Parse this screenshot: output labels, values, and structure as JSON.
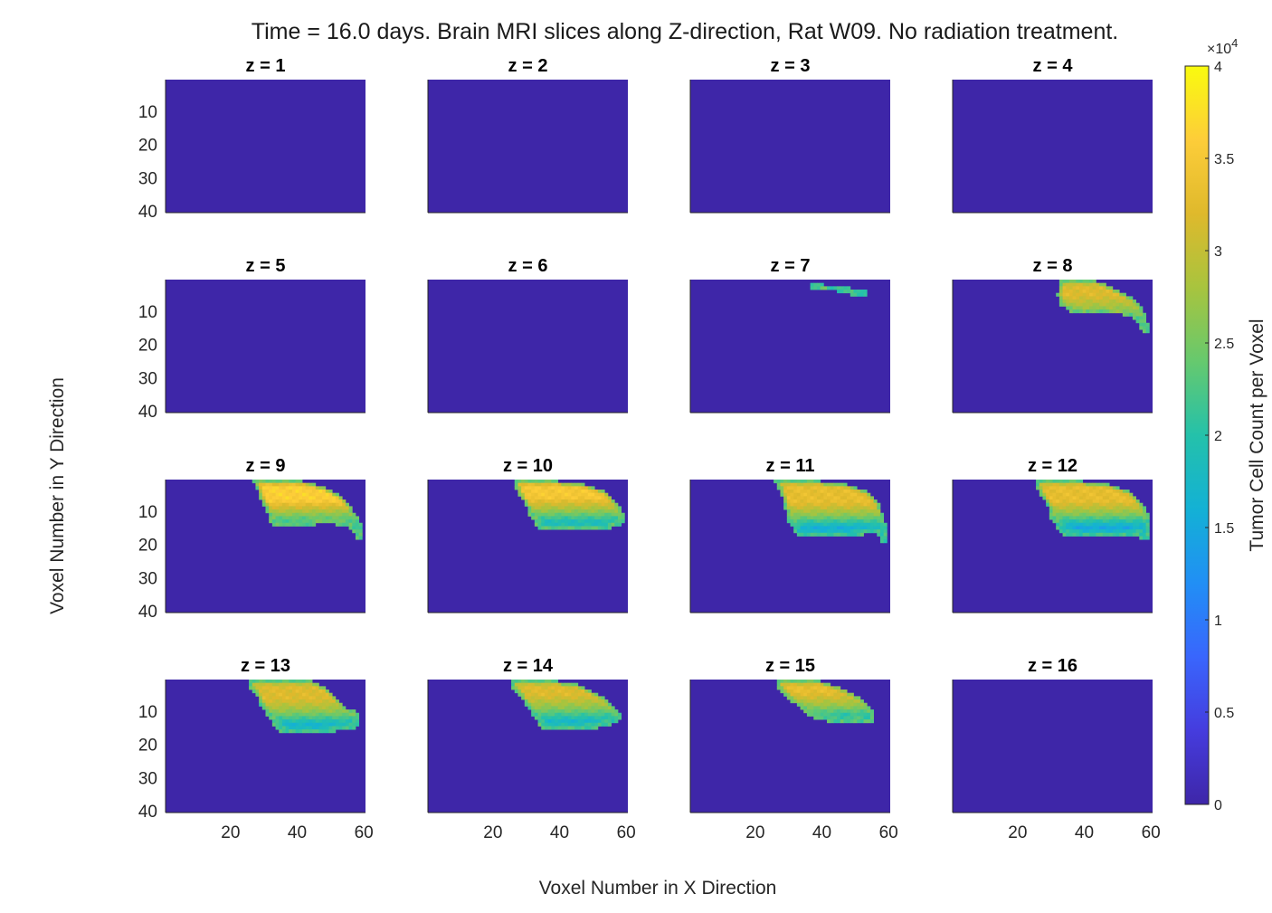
{
  "figure": {
    "title": "Time = 16.0 days. Brain MRI slices along Z-direction, Rat W09. No radiation treatment.",
    "xlabel": "Voxel Number in X Direction",
    "ylabel": "Voxel Number in Y Direction"
  },
  "colors": {
    "background_voxel": "#3e26a8",
    "axis": "#262626",
    "colormap": "parula"
  },
  "colorbar": {
    "label": "Tumor Cell Count per Voxel",
    "exponent_base": "×10",
    "exponent_power": "4",
    "ticks": [
      "0",
      "0.5",
      "1",
      "1.5",
      "2",
      "2.5",
      "3",
      "3.5",
      "4"
    ],
    "range": [
      0,
      40000
    ]
  },
  "chart_data": {
    "type": "heatmap",
    "grid": {
      "nx": 60,
      "ny": 40
    },
    "xlim": [
      1,
      60
    ],
    "ylim": [
      1,
      40
    ],
    "y_direction": "reversed",
    "xticks": [
      "20",
      "40",
      "60"
    ],
    "yticks": [
      "10",
      "20",
      "30",
      "40"
    ],
    "value_range": [
      0,
      40000
    ],
    "panels": [
      {
        "title": "z = 1",
        "tumor": null
      },
      {
        "title": "z = 2",
        "tumor": null
      },
      {
        "title": "z = 3",
        "tumor": null
      },
      {
        "title": "z = 4",
        "tumor": null
      },
      {
        "title": "z = 5",
        "tumor": null
      },
      {
        "title": "z = 6",
        "tumor": null
      },
      {
        "title": "z = 7",
        "tumor": {
          "outline": [
            [
              37,
              2
            ],
            [
              41,
              2
            ],
            [
              49,
              3
            ],
            [
              54,
              4
            ],
            [
              53,
              6
            ],
            [
              45,
              4
            ],
            [
              40,
              4
            ],
            [
              37,
              3
            ]
          ],
          "base": 24000,
          "peak": 28000,
          "core": 20000
        }
      },
      {
        "title": "z = 8",
        "tumor": {
          "outline": [
            [
              33,
              1
            ],
            [
              44,
              1
            ],
            [
              49,
              3
            ],
            [
              53,
              5
            ],
            [
              56,
              7
            ],
            [
              58,
              10
            ],
            [
              59,
              13
            ],
            [
              60,
              16
            ],
            [
              59,
              17
            ],
            [
              57,
              15
            ],
            [
              55,
              12
            ],
            [
              52,
              11
            ],
            [
              48,
              11
            ],
            [
              44,
              10
            ],
            [
              40,
              11
            ],
            [
              36,
              10
            ],
            [
              33,
              8
            ],
            [
              32,
              5
            ]
          ],
          "base": 27000,
          "peak": 32000,
          "core": 20000
        }
      },
      {
        "title": "z = 9",
        "tumor": {
          "outline": [
            [
              27,
              1
            ],
            [
              42,
              1
            ],
            [
              49,
              3
            ],
            [
              54,
              6
            ],
            [
              57,
              10
            ],
            [
              59,
              13
            ],
            [
              60,
              16
            ],
            [
              60,
              19
            ],
            [
              58,
              18
            ],
            [
              56,
              15
            ],
            [
              52,
              14
            ],
            [
              46,
              14
            ],
            [
              40,
              15
            ],
            [
              33,
              15
            ],
            [
              32,
              13
            ],
            [
              31,
              10
            ],
            [
              29,
              6
            ],
            [
              28,
              3
            ]
          ],
          "base": 27000,
          "peak": 36000,
          "core": 17000
        }
      },
      {
        "title": "z = 10",
        "tumor": {
          "outline": [
            [
              27,
              1
            ],
            [
              40,
              1
            ],
            [
              48,
              2
            ],
            [
              54,
              4
            ],
            [
              57,
              7
            ],
            [
              59,
              10
            ],
            [
              60,
              12
            ],
            [
              59,
              14
            ],
            [
              56,
              15
            ],
            [
              54,
              16
            ],
            [
              50,
              16
            ],
            [
              44,
              16
            ],
            [
              38,
              16
            ],
            [
              34,
              16
            ],
            [
              33,
              14
            ],
            [
              31,
              11
            ],
            [
              30,
              8
            ],
            [
              28,
              5
            ],
            [
              27,
              3
            ]
          ],
          "base": 27000,
          "peak": 35000,
          "core": 17000
        }
      },
      {
        "title": "z = 11",
        "tumor": {
          "outline": [
            [
              26,
              1
            ],
            [
              40,
              1
            ],
            [
              48,
              2
            ],
            [
              54,
              4
            ],
            [
              57,
              7
            ],
            [
              58,
              10
            ],
            [
              59,
              13
            ],
            [
              60,
              16
            ],
            [
              60,
              20
            ],
            [
              58,
              19
            ],
            [
              57,
              17
            ],
            [
              53,
              17
            ],
            [
              47,
              18
            ],
            [
              40,
              18
            ],
            [
              33,
              18
            ],
            [
              32,
              16
            ],
            [
              30,
              13
            ],
            [
              29,
              9
            ],
            [
              28,
              5
            ],
            [
              27,
              3
            ]
          ],
          "base": 26000,
          "peak": 33000,
          "core": 15000
        }
      },
      {
        "title": "z = 12",
        "tumor": {
          "outline": [
            [
              26,
              1
            ],
            [
              40,
              1
            ],
            [
              48,
              2
            ],
            [
              54,
              4
            ],
            [
              57,
              7
            ],
            [
              59,
              10
            ],
            [
              60,
              14
            ],
            [
              60,
              18
            ],
            [
              58,
              19
            ],
            [
              56,
              17
            ],
            [
              52,
              18
            ],
            [
              46,
              18
            ],
            [
              40,
              18
            ],
            [
              34,
              17
            ],
            [
              32,
              15
            ],
            [
              30,
              12
            ],
            [
              29,
              8
            ],
            [
              27,
              5
            ],
            [
              26,
              3
            ]
          ],
          "base": 26000,
          "peak": 33000,
          "core": 15000
        }
      },
      {
        "title": "z = 13",
        "tumor": {
          "outline": [
            [
              26,
              1
            ],
            [
              45,
              1
            ],
            [
              49,
              3
            ],
            [
              52,
              6
            ],
            [
              55,
              9
            ],
            [
              58,
              10
            ],
            [
              59,
              12
            ],
            [
              58,
              15
            ],
            [
              55,
              16
            ],
            [
              52,
              16
            ],
            [
              48,
              17
            ],
            [
              44,
              17
            ],
            [
              38,
              17
            ],
            [
              35,
              16
            ],
            [
              33,
              14
            ],
            [
              31,
              11
            ],
            [
              29,
              8
            ],
            [
              28,
              5
            ],
            [
              26,
              3
            ]
          ],
          "base": 26000,
          "peak": 32000,
          "core": 16000
        }
      },
      {
        "title": "z = 14",
        "tumor": {
          "outline": [
            [
              26,
              1
            ],
            [
              40,
              1
            ],
            [
              46,
              2
            ],
            [
              50,
              4
            ],
            [
              54,
              6
            ],
            [
              57,
              9
            ],
            [
              59,
              11
            ],
            [
              58,
              13
            ],
            [
              56,
              14
            ],
            [
              52,
              15
            ],
            [
              47,
              16
            ],
            [
              40,
              16
            ],
            [
              36,
              16
            ],
            [
              34,
              14
            ],
            [
              32,
              11
            ],
            [
              30,
              8
            ],
            [
              28,
              5
            ],
            [
              26,
              3
            ]
          ],
          "base": 26000,
          "peak": 32000,
          "core": 17000
        }
      },
      {
        "title": "z = 15",
        "tumor": {
          "outline": [
            [
              27,
              1
            ],
            [
              40,
              1
            ],
            [
              46,
              3
            ],
            [
              50,
              5
            ],
            [
              54,
              8
            ],
            [
              56,
              10
            ],
            [
              56,
              14
            ],
            [
              53,
              14
            ],
            [
              50,
              13
            ],
            [
              46,
              14
            ],
            [
              42,
              13
            ],
            [
              38,
              12
            ],
            [
              36,
              11
            ],
            [
              34,
              9
            ],
            [
              31,
              7
            ],
            [
              29,
              5
            ],
            [
              27,
              3
            ]
          ],
          "base": 27000,
          "peak": 33000,
          "core": 17000
        }
      },
      {
        "title": "z = 16",
        "tumor": null
      }
    ]
  }
}
